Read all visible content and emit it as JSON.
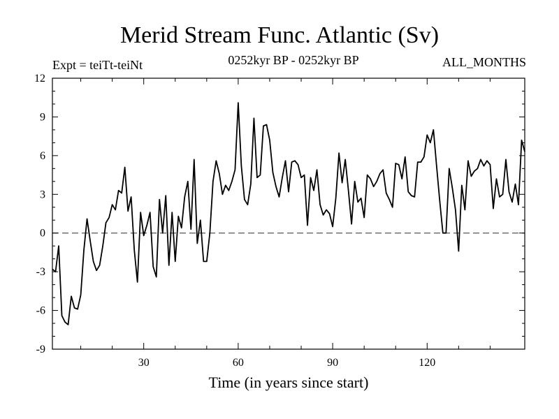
{
  "header": {
    "title": "Merid Stream Func. Atlantic (Sv)",
    "expt": "Expt = teiTt-teiNt",
    "period": "0252kyr BP - 0252kyr BP",
    "months": "ALL_MONTHS"
  },
  "chart_data": {
    "type": "line",
    "title": "Merid Stream Func. Atlantic (Sv)",
    "xlabel": "Time (in years since start)",
    "ylabel": "",
    "xlim": [
      1,
      151
    ],
    "ylim": [
      -9,
      12
    ],
    "xticks_major": [
      30,
      60,
      90,
      120
    ],
    "xticks_minor": [
      10,
      20,
      40,
      50,
      70,
      80,
      100,
      110,
      130,
      140
    ],
    "yticks": [
      -9,
      -6,
      -3,
      0,
      3,
      6,
      9,
      12
    ],
    "reference_line": {
      "y": 0,
      "style": "dashed"
    },
    "series": [
      {
        "name": "teiTt-teiNt",
        "x": [
          1,
          2,
          3,
          4,
          5,
          6,
          7,
          8,
          9,
          10,
          11,
          12,
          13,
          14,
          15,
          16,
          17,
          18,
          19,
          20,
          21,
          22,
          23,
          24,
          25,
          26,
          27,
          28,
          29,
          30,
          31,
          32,
          33,
          34,
          35,
          36,
          37,
          38,
          39,
          40,
          41,
          42,
          43,
          44,
          45,
          46,
          47,
          48,
          49,
          50,
          51,
          52,
          53,
          54,
          55,
          56,
          57,
          58,
          59,
          60,
          61,
          62,
          63,
          64,
          65,
          66,
          67,
          68,
          69,
          70,
          71,
          72,
          73,
          74,
          75,
          76,
          77,
          78,
          79,
          80,
          81,
          82,
          83,
          84,
          85,
          86,
          87,
          88,
          89,
          90,
          91,
          92,
          93,
          94,
          95,
          96,
          97,
          98,
          99,
          100,
          101,
          102,
          103,
          104,
          105,
          106,
          107,
          108,
          109,
          110,
          111,
          112,
          113,
          114,
          115,
          116,
          117,
          118,
          119,
          120,
          121,
          122,
          123,
          124,
          125,
          126,
          127,
          128,
          129,
          130,
          131,
          132,
          133,
          134,
          135,
          136,
          137,
          138,
          139,
          140,
          141,
          142,
          143,
          144,
          145,
          146,
          147,
          148,
          149,
          150,
          151
        ],
        "values": [
          -2.8,
          -3.0,
          -1.0,
          -6.4,
          -6.9,
          -7.1,
          -4.9,
          -5.8,
          -5.9,
          -4.8,
          -1.3,
          1.1,
          -0.6,
          -2.2,
          -2.9,
          -2.5,
          -1.0,
          0.8,
          1.2,
          2.2,
          1.8,
          3.3,
          3.1,
          5.1,
          1.7,
          2.8,
          -1.3,
          -3.8,
          1.6,
          -0.2,
          0.6,
          1.6,
          -2.6,
          -3.4,
          2.6,
          0.0,
          2.9,
          -2.5,
          1.6,
          -2.2,
          1.3,
          0.4,
          2.8,
          4.0,
          0.3,
          5.7,
          -0.8,
          1.0,
          -2.2,
          -2.2,
          0.0,
          4.0,
          5.6,
          4.6,
          3.0,
          3.7,
          3.3,
          4.0,
          4.9,
          10.1,
          5.2,
          2.6,
          2.2,
          3.8,
          8.9,
          4.3,
          4.5,
          8.3,
          8.4,
          7.2,
          4.7,
          3.6,
          2.8,
          4.3,
          5.6,
          3.2,
          5.5,
          5.6,
          5.3,
          4.3,
          4.5,
          0.6,
          4.3,
          3.3,
          4.9,
          2.2,
          1.4,
          1.8,
          1.5,
          0.5,
          2.7,
          6.2,
          3.9,
          5.7,
          3.3,
          0.7,
          4.0,
          2.4,
          2.7,
          1.2,
          4.5,
          4.2,
          3.6,
          4.0,
          4.6,
          4.9,
          3.1,
          2.6,
          2.0,
          5.4,
          5.3,
          4.2,
          5.9,
          3.2,
          2.9,
          2.8,
          5.5,
          5.5,
          5.9,
          7.6,
          7.0,
          8.0,
          5.2,
          2.5,
          0.0,
          0.0,
          5.0,
          3.5,
          1.8,
          -1.4,
          3.7,
          1.8,
          5.6,
          4.4,
          4.8,
          5.0,
          5.7,
          5.2,
          5.6,
          5.3,
          1.9,
          4.2,
          2.8,
          3.0,
          5.7,
          3.2,
          2.4,
          3.8,
          2.2,
          7.2,
          6.3
        ]
      }
    ]
  }
}
